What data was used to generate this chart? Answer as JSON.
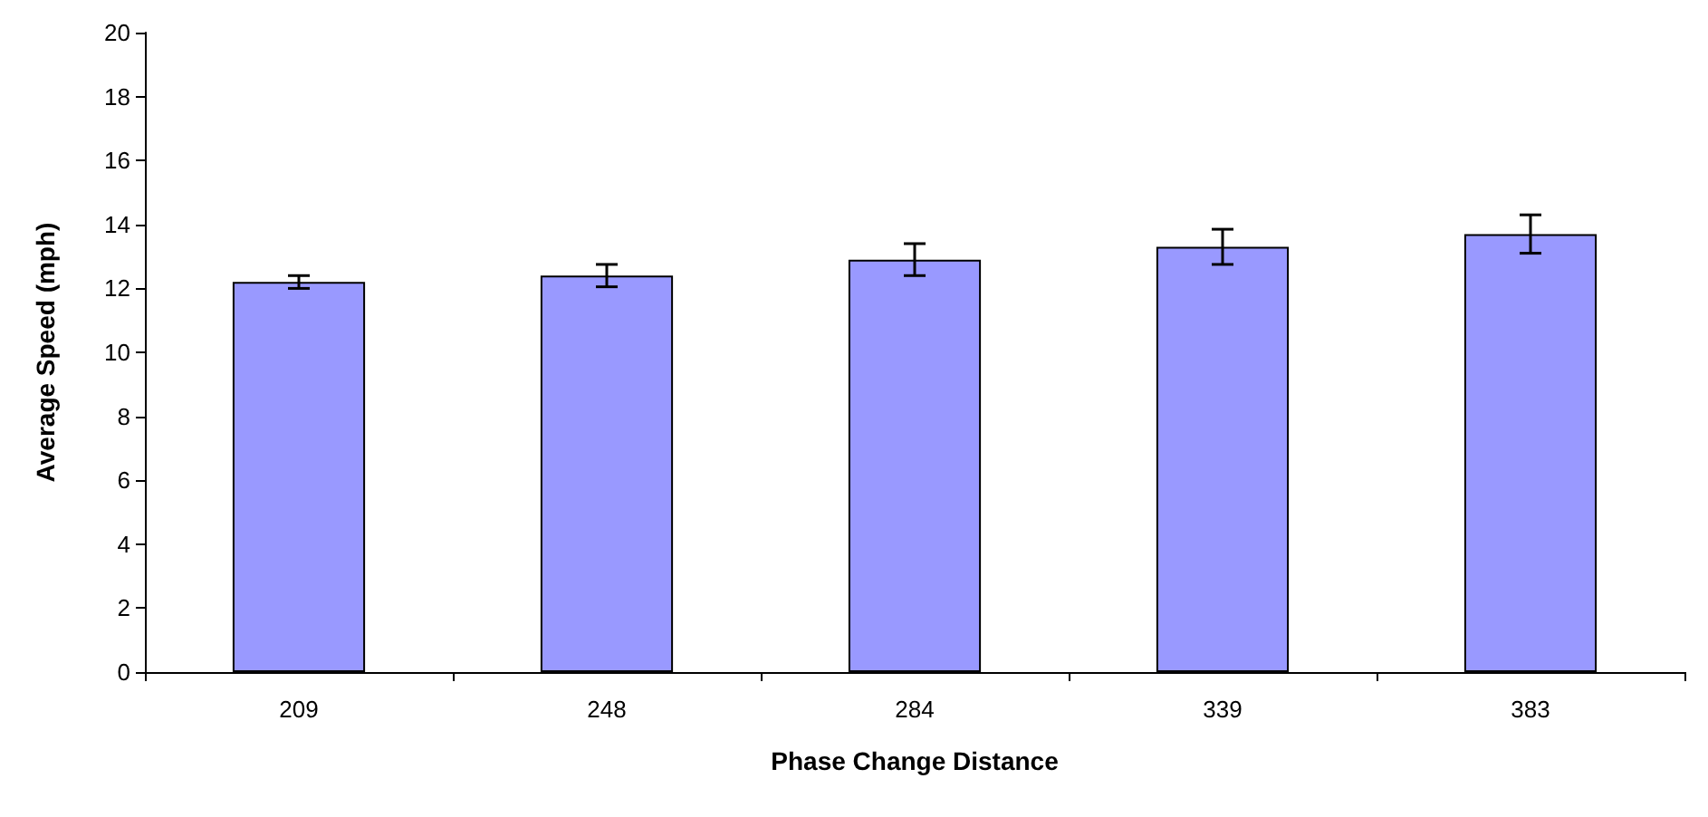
{
  "chart_data": {
    "type": "bar",
    "xlabel": "Phase Change Distance",
    "ylabel": "Average Speed (mph)",
    "categories": [
      "209",
      "248",
      "284",
      "339",
      "383"
    ],
    "series": [
      {
        "color": "#9999ff",
        "values": [
          12.2,
          12.4,
          12.9,
          13.3,
          13.7
        ],
        "errors": [
          0.2,
          0.35,
          0.5,
          0.55,
          0.6
        ]
      }
    ],
    "ylim": [
      0,
      20
    ],
    "yticks": [
      0,
      2,
      4,
      6,
      8,
      10,
      12,
      14,
      16,
      18,
      20
    ],
    "grid": false
  }
}
